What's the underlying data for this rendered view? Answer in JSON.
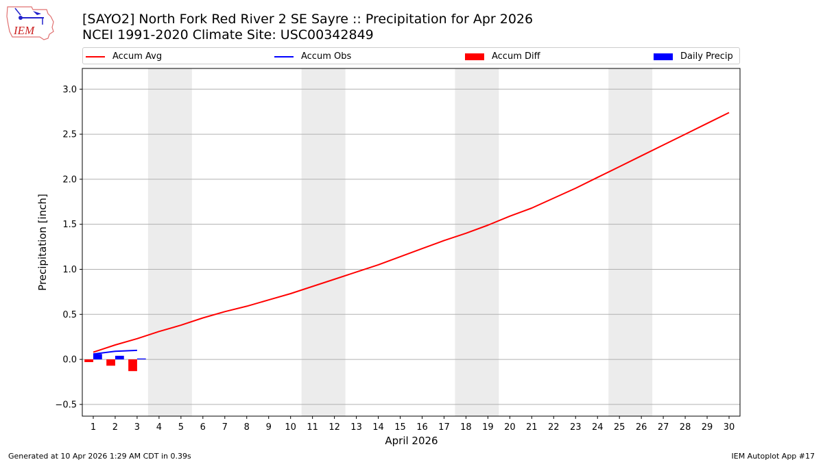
{
  "header": {
    "title_line1": "[SAYO2] North Fork Red River 2 SE Sayre :: Precipitation for Apr 2026",
    "title_line2": "NCEI 1991-2020 Climate Site: USC00342849",
    "logo_text": "IEM"
  },
  "footer": {
    "generated": "Generated at 10 Apr 2026 1:29 AM CDT in 0.39s",
    "app": "IEM Autoplot App #17"
  },
  "legend": [
    {
      "label": "Accum Avg",
      "color": "#ff0000",
      "kind": "line"
    },
    {
      "label": "Accum Obs",
      "color": "#0000ff",
      "kind": "line"
    },
    {
      "label": "Accum Diff",
      "color": "#ff0000",
      "kind": "box"
    },
    {
      "label": "Daily Precip",
      "color": "#0000ff",
      "kind": "box"
    }
  ],
  "chart_data": {
    "type": "line",
    "xlabel": "April 2026",
    "ylabel": "Precipitation [inch]",
    "xlim": [
      0.5,
      30.5
    ],
    "ylim": [
      -0.63,
      3.23
    ],
    "x_ticks": [
      1,
      2,
      3,
      4,
      5,
      6,
      7,
      8,
      9,
      10,
      11,
      12,
      13,
      14,
      15,
      16,
      17,
      18,
      19,
      20,
      21,
      22,
      23,
      24,
      25,
      26,
      27,
      28,
      29,
      30
    ],
    "y_ticks": [
      -0.5,
      0.0,
      0.5,
      1.0,
      1.5,
      2.0,
      2.5,
      3.0
    ],
    "y_tick_labels": [
      "−0.5",
      "0.0",
      "0.5",
      "1.0",
      "1.5",
      "2.0",
      "2.5",
      "3.0"
    ],
    "grid": "horizontal",
    "weekend_shading": [
      [
        3.5,
        5.5
      ],
      [
        10.5,
        12.5
      ],
      [
        17.5,
        19.5
      ],
      [
        24.5,
        26.5
      ]
    ],
    "colors": {
      "avg": "#ff0000",
      "obs": "#0000ff",
      "diff": "#ff0000",
      "daily": "#0000ff",
      "weekend": "#ececec",
      "grid": "#b0b0b0"
    },
    "series": [
      {
        "name": "Accum Avg",
        "x": [
          1,
          2,
          3,
          4,
          5,
          6,
          7,
          8,
          9,
          10,
          11,
          12,
          13,
          14,
          15,
          16,
          17,
          18,
          19,
          20,
          21,
          22,
          23,
          24,
          25,
          26,
          27,
          28,
          29,
          30
        ],
        "values": [
          0.08,
          0.16,
          0.23,
          0.31,
          0.38,
          0.46,
          0.53,
          0.59,
          0.66,
          0.73,
          0.81,
          0.89,
          0.97,
          1.05,
          1.14,
          1.23,
          1.32,
          1.4,
          1.49,
          1.59,
          1.68,
          1.79,
          1.9,
          2.02,
          2.14,
          2.26,
          2.38,
          2.5,
          2.62,
          2.74
        ]
      },
      {
        "name": "Accum Obs",
        "x": [
          1,
          2,
          3
        ],
        "values": [
          0.06,
          0.09,
          0.1
        ]
      },
      {
        "name": "Accum Diff",
        "x": [
          1,
          2,
          3
        ],
        "values": [
          -0.03,
          -0.07,
          -0.13
        ]
      },
      {
        "name": "Daily Precip",
        "x": [
          1,
          2,
          3
        ],
        "values": [
          0.06,
          0.04,
          0.01
        ]
      }
    ]
  }
}
